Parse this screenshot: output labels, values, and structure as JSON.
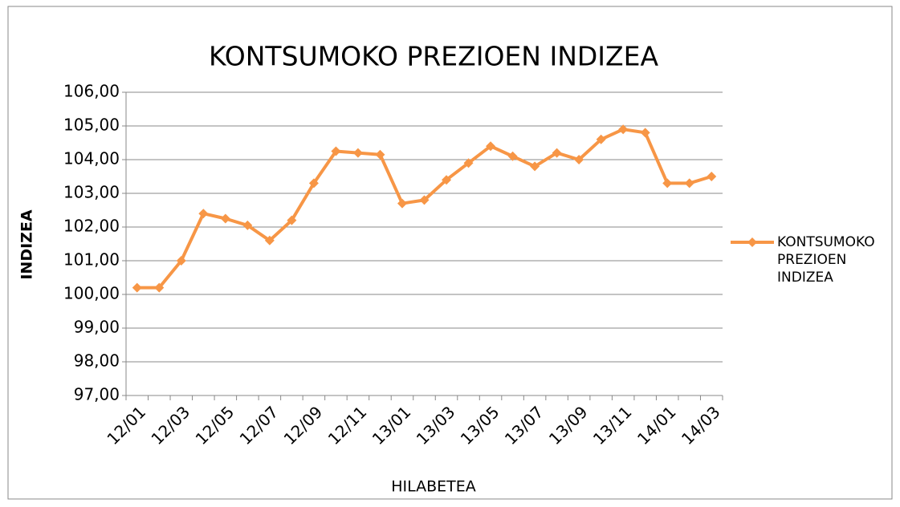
{
  "chart_data": {
    "type": "line",
    "title": "KONTSUMOKO PREZIOEN INDIZEA",
    "x_label": "HILABETEA",
    "y_label": "INDIZEA",
    "categories": [
      "12/01",
      null,
      "12/03",
      null,
      "12/05",
      null,
      "12/07",
      null,
      "12/09",
      null,
      "12/11",
      null,
      "13/01",
      null,
      "13/03",
      null,
      "13/05",
      null,
      "13/07",
      null,
      "13/09",
      null,
      "13/11",
      null,
      "14/01",
      null,
      "14/03"
    ],
    "series": [
      {
        "name": "KONTSUMOKO PREZIOEN INDIZEA",
        "color": "#f79646",
        "values": [
          100.2,
          100.2,
          101.0,
          102.4,
          102.25,
          102.05,
          101.6,
          102.2,
          103.3,
          104.25,
          104.2,
          104.15,
          102.7,
          102.8,
          103.4,
          103.9,
          104.4,
          104.1,
          103.8,
          104.2,
          104.0,
          104.6,
          104.9,
          104.8,
          103.3,
          103.3,
          103.5
        ]
      }
    ],
    "ylim": [
      97,
      106
    ],
    "yticks": [
      {
        "value": 97,
        "label": "97,00"
      },
      {
        "value": 98,
        "label": "98,00"
      },
      {
        "value": 99,
        "label": "99,00"
      },
      {
        "value": 100,
        "label": "100,00"
      },
      {
        "value": 101,
        "label": "101,00"
      },
      {
        "value": 102,
        "label": "102,00"
      },
      {
        "value": 103,
        "label": "103,00"
      },
      {
        "value": 104,
        "label": "104,00"
      },
      {
        "value": 105,
        "label": "105,00"
      },
      {
        "value": 106,
        "label": "106,00"
      }
    ],
    "grid": true,
    "legend": "right"
  }
}
